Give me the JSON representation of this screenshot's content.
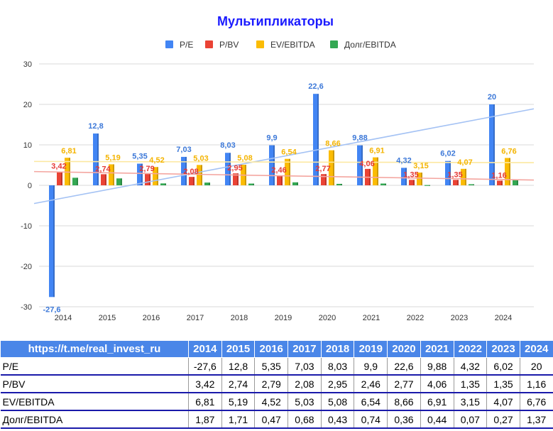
{
  "chart_data": {
    "type": "bar",
    "title": "Мультипликаторы",
    "categories": [
      "2014",
      "2015",
      "2016",
      "2017",
      "2018",
      "2019",
      "2020",
      "2021",
      "2022",
      "2023",
      "2024"
    ],
    "series": [
      {
        "name": "P/E",
        "color": "#4285f4",
        "values": [
          -27.6,
          12.8,
          5.35,
          7.03,
          8.03,
          9.9,
          22.6,
          9.88,
          4.32,
          6.02,
          20
        ],
        "labels": [
          "-27,6",
          "12,8",
          "5,35",
          "7,03",
          "8,03",
          "9,9",
          "22,6",
          "9,88",
          "4,32",
          "6,02",
          "20"
        ],
        "label_color": "#3c78d8"
      },
      {
        "name": "P/BV",
        "color": "#ea4335",
        "values": [
          3.42,
          2.74,
          2.79,
          2.08,
          2.95,
          2.46,
          2.77,
          4.06,
          1.35,
          1.35,
          1.16
        ],
        "labels": [
          "3,42",
          "2,74",
          "2,79",
          "2,08",
          "2,95",
          "2,46",
          "2,77",
          "4,06",
          "1,35",
          "1,35",
          "1,16"
        ],
        "label_color": "#e53935"
      },
      {
        "name": "EV/EBITDA",
        "color": "#fbbc04",
        "values": [
          6.81,
          5.19,
          4.52,
          5.03,
          5.08,
          6.54,
          8.66,
          6.91,
          3.15,
          4.07,
          6.76
        ],
        "labels": [
          "6,81",
          "5,19",
          "4,52",
          "5,03",
          "5,08",
          "6,54",
          "8,66",
          "6,91",
          "3,15",
          "4,07",
          "6,76"
        ],
        "label_color": "#f4b400"
      },
      {
        "name": "Долг/EBITDA",
        "color": "#34a853",
        "values": [
          1.87,
          1.71,
          0.47,
          0.68,
          0.43,
          0.74,
          0.36,
          0.44,
          0.07,
          0.27,
          1.37
        ]
      }
    ],
    "trendlines": [
      {
        "series": "P/E",
        "color": "#a4c2f4",
        "start": -4.5,
        "end": 18.9
      },
      {
        "series": "P/BV",
        "color": "#f4a6a0",
        "start": 3.4,
        "end": 1.3
      },
      {
        "series": "EV/EBITDA",
        "color": "#fce8a0",
        "start": 5.9,
        "end": 5.6
      }
    ],
    "ylim": [
      -30,
      30
    ],
    "yticks": [
      -30,
      -20,
      -10,
      0,
      10,
      20,
      30
    ],
    "grid": true,
    "legend": "top-center"
  },
  "table": {
    "header_label": "https://t.me/real_invest_ru",
    "years": [
      "2014",
      "2015",
      "2016",
      "2017",
      "2018",
      "2019",
      "2020",
      "2021",
      "2022",
      "2023",
      "2024"
    ],
    "rows": [
      {
        "label": "P/E",
        "cells": [
          "-27,6",
          "12,8",
          "5,35",
          "7,03",
          "8,03",
          "9,9",
          "22,6",
          "9,88",
          "4,32",
          "6,02",
          "20"
        ]
      },
      {
        "label": "P/BV",
        "cells": [
          "3,42",
          "2,74",
          "2,79",
          "2,08",
          "2,95",
          "2,46",
          "2,77",
          "4,06",
          "1,35",
          "1,35",
          "1,16"
        ]
      },
      {
        "label": "EV/EBITDA",
        "cells": [
          "6,81",
          "5,19",
          "4,52",
          "5,03",
          "5,08",
          "6,54",
          "8,66",
          "6,91",
          "3,15",
          "4,07",
          "6,76"
        ]
      },
      {
        "label": "Долг/EBITDA",
        "cells": [
          "1,87",
          "1,71",
          "0,47",
          "0,68",
          "0,43",
          "0,74",
          "0,36",
          "0,44",
          "0,07",
          "0,27",
          "1,37"
        ]
      }
    ]
  }
}
